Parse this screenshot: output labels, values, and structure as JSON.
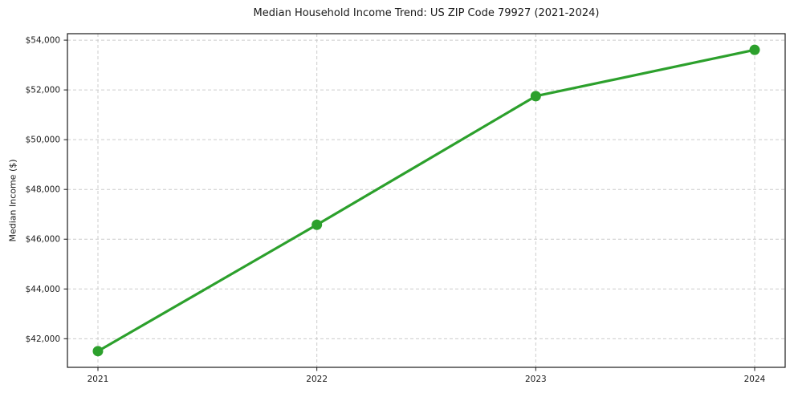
{
  "chart_data": {
    "type": "line",
    "title": "Median Household Income Trend: US ZIP Code 79927 (2021-2024)",
    "xlabel": "",
    "ylabel": "Median Income ($)",
    "categories": [
      "2021",
      "2022",
      "2023",
      "2024"
    ],
    "series": [
      {
        "name": "Median Household Income",
        "values": [
          41500,
          46580,
          51750,
          53610
        ]
      }
    ],
    "ylim": [
      40850,
      54260
    ],
    "yticks": [
      42000,
      44000,
      46000,
      48000,
      50000,
      52000,
      54000
    ],
    "ytick_prefix": "$",
    "grid": true,
    "grid_style": "dashed",
    "legend": "none",
    "colors": {
      "line": "#2ca02c",
      "marker": "#2ca02c",
      "grid": "#cccccc",
      "spine": "#1a1a1a",
      "text": "#1a1a1a",
      "background": "#ffffff"
    },
    "marker_radius": 6.5,
    "line_width": 3.2
  }
}
